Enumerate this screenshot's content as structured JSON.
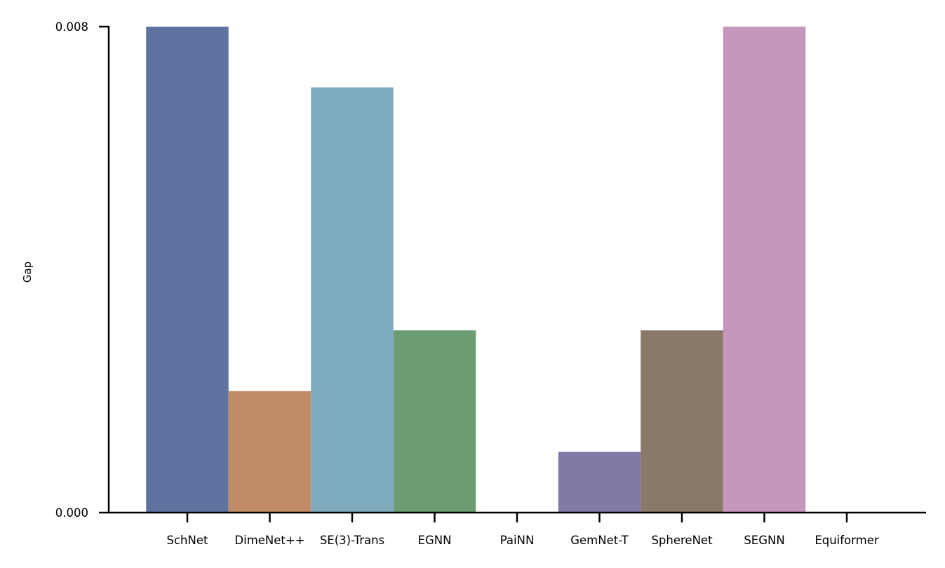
{
  "chart_data": {
    "type": "bar",
    "categories": [
      "SchNet",
      "DimeNet++",
      "SE(3)-Trans",
      "EGNN",
      "PaiNN",
      "GemNet-T",
      "SphereNet",
      "SEGNN",
      "Equiformer"
    ],
    "values": [
      0.008,
      0.002,
      0.007,
      0.003,
      0.0,
      0.001,
      0.003,
      0.008,
      0.0
    ],
    "colors": [
      "#5f73a0",
      "#c28b68",
      "#7fabbf",
      "#6c9c71",
      "#ffffff",
      "#8279a6",
      "#8a7969",
      "#c796bc",
      "#ffffff"
    ],
    "ylabel": "Gap",
    "xlabel": "",
    "ylim": [
      0.0,
      0.008
    ],
    "yticks": [
      0.0,
      0.008
    ],
    "ytick_labels": [
      "0.000",
      "0.008"
    ],
    "grid": false,
    "legend": "none"
  }
}
